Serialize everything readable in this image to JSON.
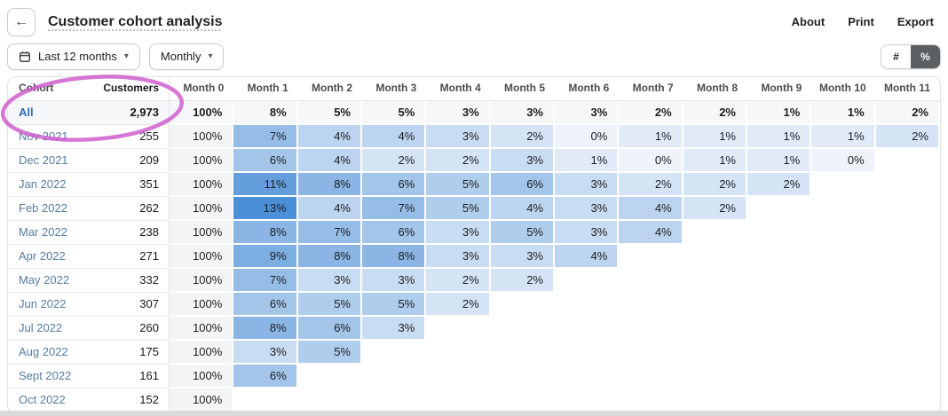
{
  "header": {
    "back_icon": "←",
    "title": "Customer cohort analysis",
    "links": [
      "About",
      "Print",
      "Export"
    ]
  },
  "filters": {
    "date_range": "Last 12 months",
    "granularity": "Monthly",
    "caret": "▾",
    "toggle": {
      "options": [
        "#",
        "%"
      ],
      "selected": "%"
    }
  },
  "annotation": {
    "shape": "hand-drawn-ellipse",
    "color": "#cf5ece",
    "circled_text": "All 2,973"
  },
  "table": {
    "columns": [
      "Cohort",
      "Customers",
      "Month 0",
      "Month 1",
      "Month 2",
      "Month 3",
      "Month 4",
      "Month 5",
      "Month 6",
      "Month 7",
      "Month 8",
      "Month 9",
      "Month 10",
      "Month 11"
    ],
    "value_unit": "%",
    "rows": [
      {
        "cohort": "All",
        "customers": "2,973",
        "summary": true,
        "values": [
          100,
          8,
          5,
          5,
          3,
          3,
          3,
          2,
          2,
          1,
          1,
          2
        ]
      },
      {
        "cohort": "Nov 2021",
        "customers": "255",
        "values": [
          100,
          7,
          4,
          4,
          3,
          2,
          0,
          1,
          1,
          1,
          1,
          2
        ]
      },
      {
        "cohort": "Dec 2021",
        "customers": "209",
        "values": [
          100,
          6,
          4,
          2,
          2,
          3,
          1,
          0,
          1,
          1,
          0,
          null
        ]
      },
      {
        "cohort": "Jan 2022",
        "customers": "351",
        "values": [
          100,
          11,
          8,
          6,
          5,
          6,
          3,
          2,
          2,
          2,
          null,
          null
        ]
      },
      {
        "cohort": "Feb 2022",
        "customers": "262",
        "values": [
          100,
          13,
          4,
          7,
          5,
          4,
          3,
          4,
          2,
          null,
          null,
          null
        ]
      },
      {
        "cohort": "Mar 2022",
        "customers": "238",
        "values": [
          100,
          8,
          7,
          6,
          3,
          5,
          3,
          4,
          null,
          null,
          null,
          null
        ]
      },
      {
        "cohort": "Apr 2022",
        "customers": "271",
        "values": [
          100,
          9,
          8,
          8,
          3,
          3,
          4,
          null,
          null,
          null,
          null,
          null
        ]
      },
      {
        "cohort": "May 2022",
        "customers": "332",
        "values": [
          100,
          7,
          3,
          3,
          2,
          2,
          null,
          null,
          null,
          null,
          null,
          null
        ]
      },
      {
        "cohort": "Jun 2022",
        "customers": "307",
        "values": [
          100,
          6,
          5,
          5,
          2,
          null,
          null,
          null,
          null,
          null,
          null,
          null
        ]
      },
      {
        "cohort": "Jul 2022",
        "customers": "260",
        "values": [
          100,
          8,
          6,
          3,
          null,
          null,
          null,
          null,
          null,
          null,
          null,
          null
        ]
      },
      {
        "cohort": "Aug 2022",
        "customers": "175",
        "values": [
          100,
          3,
          5,
          null,
          null,
          null,
          null,
          null,
          null,
          null,
          null,
          null
        ]
      },
      {
        "cohort": "Sept 2022",
        "customers": "161",
        "values": [
          100,
          6,
          null,
          null,
          null,
          null,
          null,
          null,
          null,
          null,
          null,
          null
        ]
      },
      {
        "cohort": "Oct 2022",
        "customers": "152",
        "values": [
          100,
          null,
          null,
          null,
          null,
          null,
          null,
          null,
          null,
          null,
          null,
          null
        ]
      }
    ]
  },
  "colors": {
    "heat_low": "#eef3fa",
    "heat_high": "#4b8fd7",
    "heat_max_value": 13,
    "month0_bg": "#f3f4f6",
    "summary_bg": "#f6f7f8",
    "link_blue": "#2f6bc1",
    "cohort_link": "#567c9f",
    "toggle_selected_bg": "#5c5f62"
  }
}
